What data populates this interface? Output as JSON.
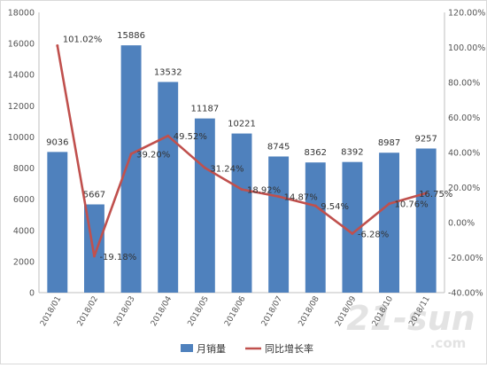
{
  "chart_data": {
    "type": "bar",
    "categories": [
      "2018/01",
      "2018/02",
      "2018/03",
      "2018/04",
      "2018/05",
      "2018/06",
      "2018/07",
      "2018/08",
      "2018/09",
      "2018/10",
      "2018/11"
    ],
    "series": [
      {
        "name": "月销量",
        "type": "bar",
        "axis": "left",
        "color": "#4f81bd",
        "values": [
          9036,
          5667,
          15886,
          13532,
          11187,
          10221,
          8745,
          8362,
          8392,
          8987,
          9257
        ],
        "labels": [
          "9036",
          "5667",
          "15886",
          "13532",
          "11187",
          "10221",
          "8745",
          "8362",
          "8392",
          "8987",
          "9257"
        ]
      },
      {
        "name": "同比增长率",
        "type": "line",
        "axis": "right",
        "color": "#c0504d",
        "values": [
          101.02,
          -19.18,
          39.2,
          49.52,
          31.24,
          18.92,
          14.87,
          9.54,
          -6.28,
          10.76,
          16.75
        ],
        "labels": [
          "101.02%",
          "-19.18%",
          "39.20%",
          "49.52%",
          "31.24%",
          "18.92%",
          "14.87%",
          "9.54%",
          "-6.28%",
          "10.76%",
          "16.75%"
        ]
      }
    ],
    "y_left": {
      "min": 0,
      "max": 18000,
      "ticks": [
        "0",
        "2000",
        "4000",
        "6000",
        "8000",
        "10000",
        "12000",
        "14000",
        "16000",
        "18000"
      ]
    },
    "y_right": {
      "min": -40,
      "max": 120,
      "ticks": [
        "-40.00%",
        "-20.00%",
        "0.00%",
        "20.00%",
        "40.00%",
        "60.00%",
        "80.00%",
        "100.00%",
        "120.00%"
      ]
    },
    "title": "",
    "xlabel": "",
    "ylabel": "",
    "grid": false,
    "legend": "bottom",
    "watermark": "21-sun.com"
  }
}
